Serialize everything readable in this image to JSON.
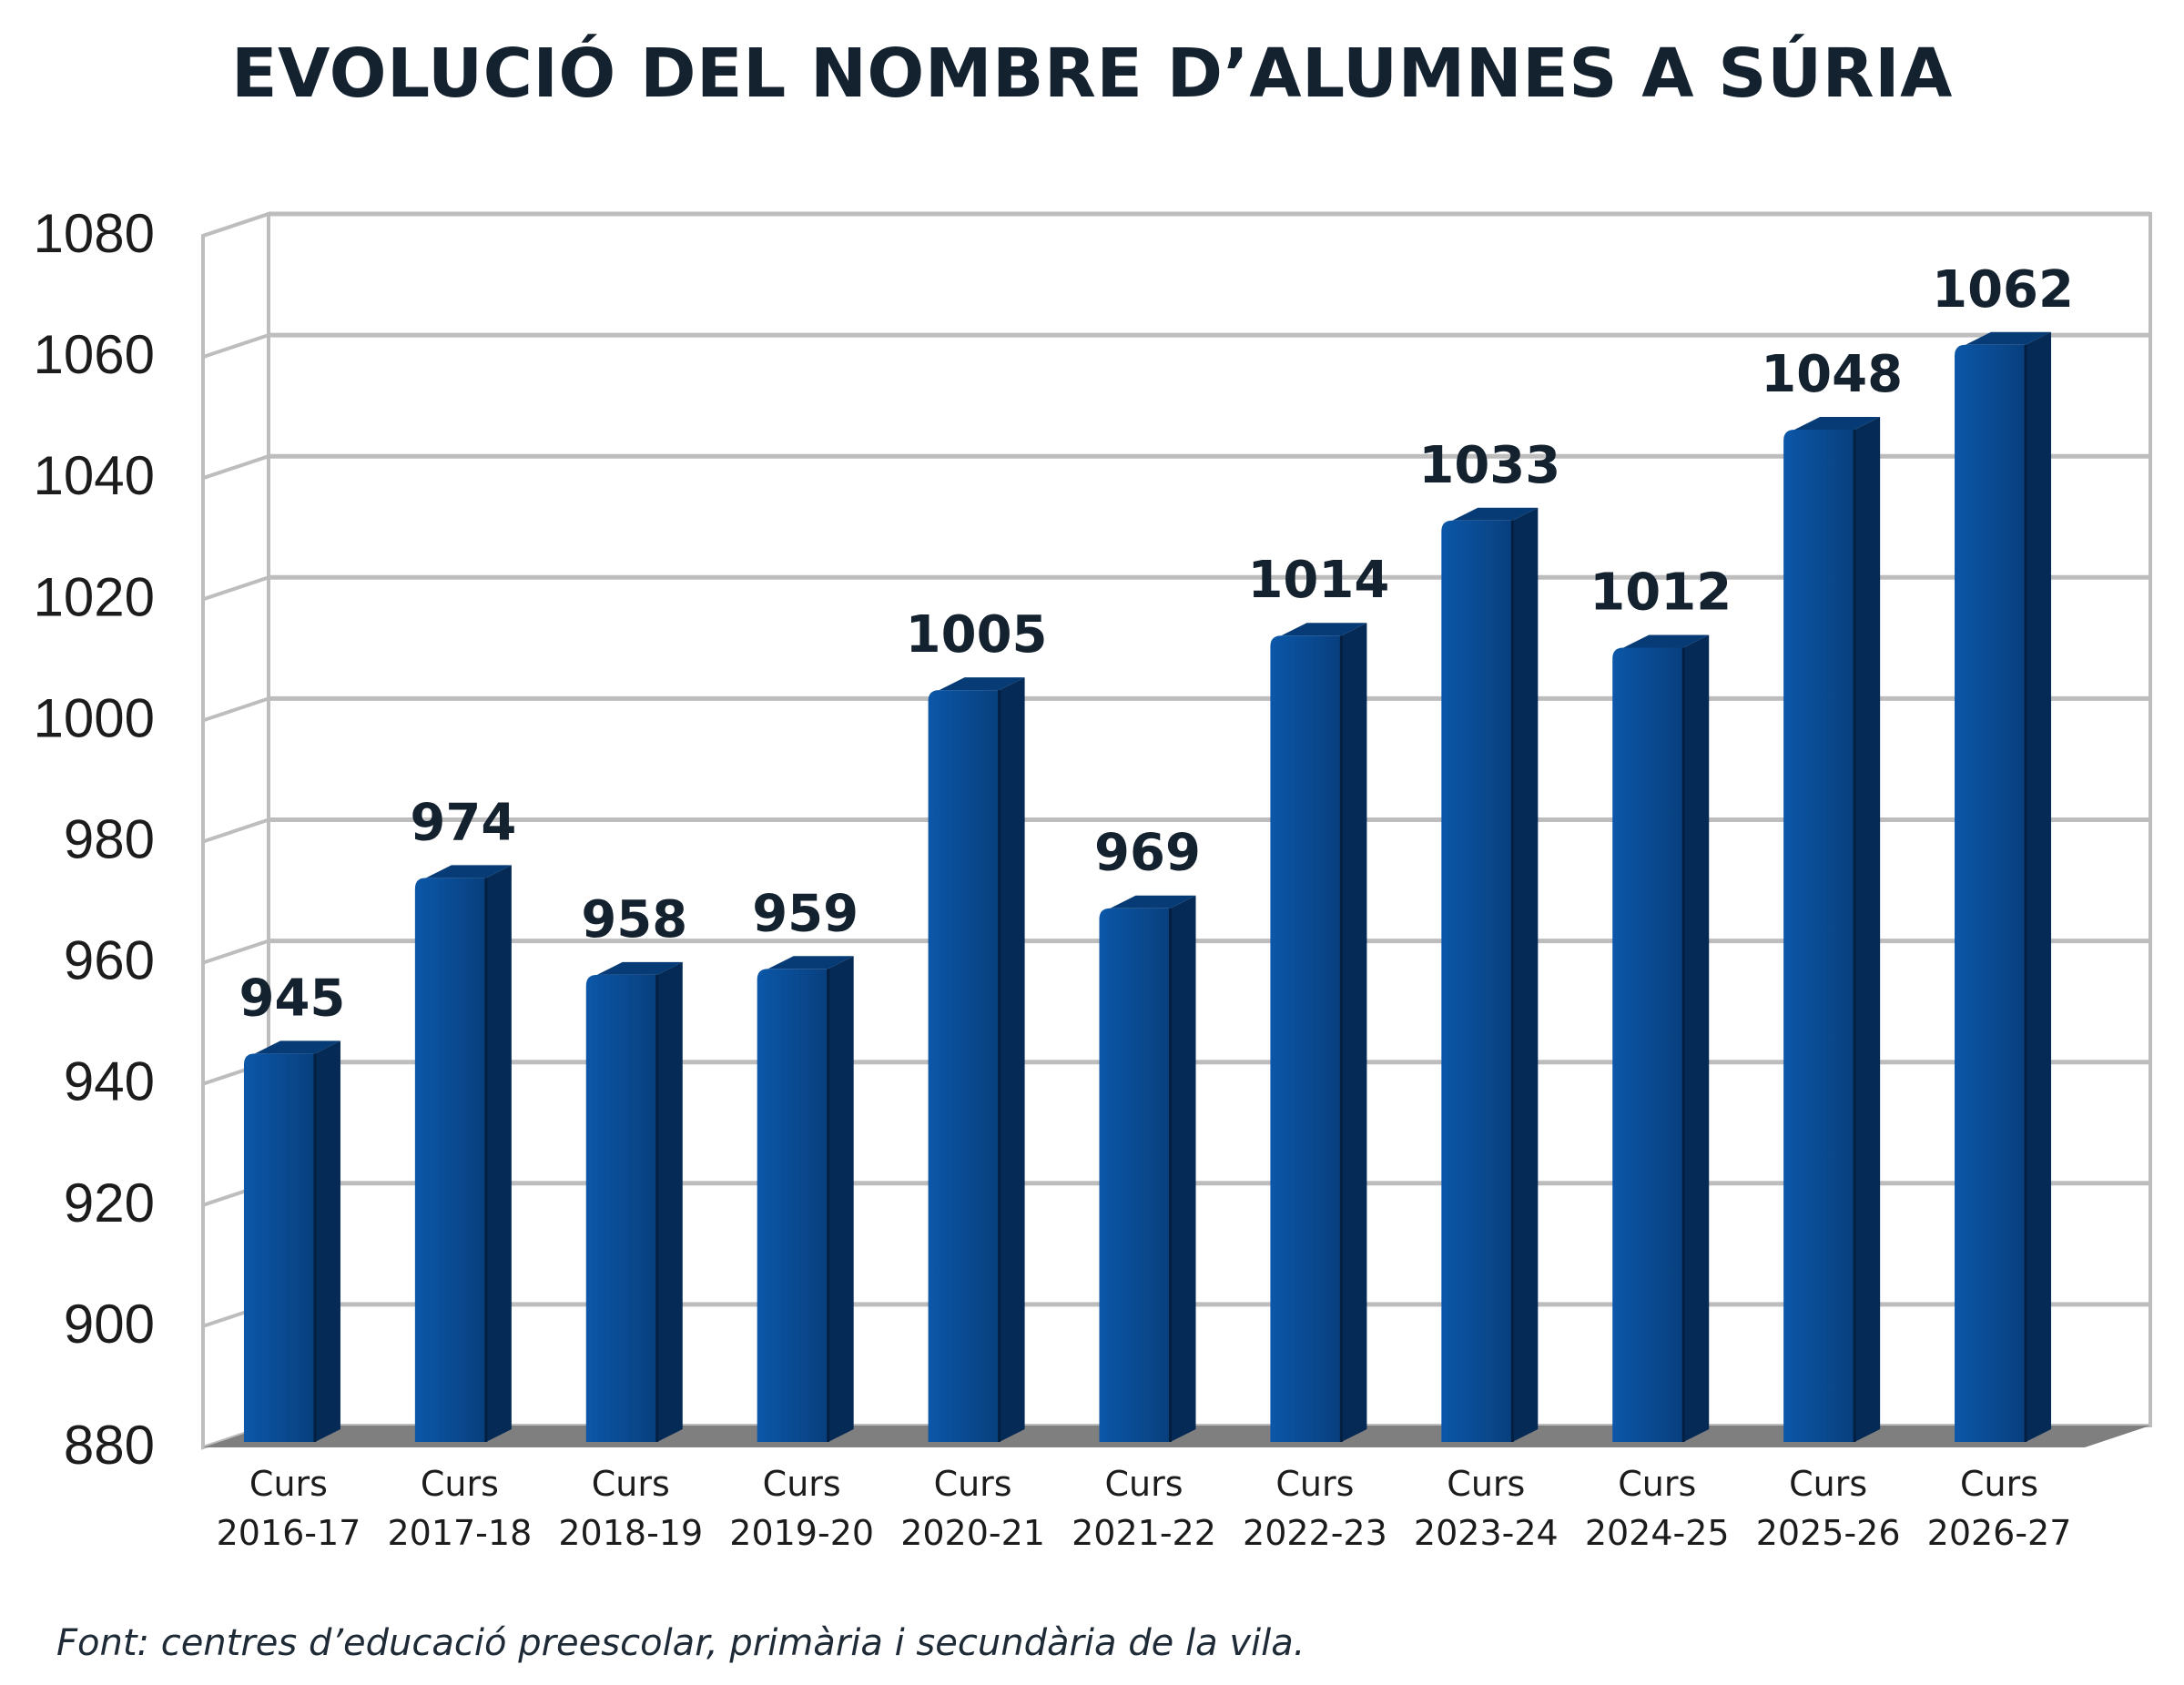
{
  "chart_data": {
    "type": "bar",
    "title": "EVOLUCIÓ DEL NOMBRE D’ALUMNES A SÚRIA",
    "xlabel": "",
    "ylabel": "",
    "categories": [
      [
        "Curs",
        "2016-17"
      ],
      [
        "Curs",
        "2017-18"
      ],
      [
        "Curs",
        "2018-19"
      ],
      [
        "Curs",
        "2019-20"
      ],
      [
        "Curs",
        "2020-21"
      ],
      [
        "Curs",
        "2021-22"
      ],
      [
        "Curs",
        "2022-23"
      ],
      [
        "Curs",
        "2023-24"
      ],
      [
        "Curs",
        "2024-25"
      ],
      [
        "Curs",
        "2025-26"
      ],
      [
        "Curs",
        "2026-27"
      ]
    ],
    "values": [
      945,
      974,
      958,
      959,
      1005,
      969,
      1014,
      1033,
      1012,
      1048,
      1062
    ],
    "data_labels": [
      "945",
      "974",
      "958",
      "959",
      "1005",
      "969",
      "1014",
      "1033",
      "1012",
      "1048",
      "1062"
    ],
    "ylim": [
      880,
      1080
    ],
    "yticks": [
      880,
      900,
      920,
      940,
      960,
      980,
      1000,
      1020,
      1040,
      1060,
      1080
    ],
    "grid": true,
    "style": "3d-column",
    "colors": {
      "bar_front": "#0a4a91",
      "bar_side": "#052a55",
      "bar_top": "#063b76",
      "grid": "#bdbdbd",
      "floor": "#7f7f7f"
    }
  },
  "source_note": "Font: centres d’educació preescolar, primària i secundària de la vila."
}
